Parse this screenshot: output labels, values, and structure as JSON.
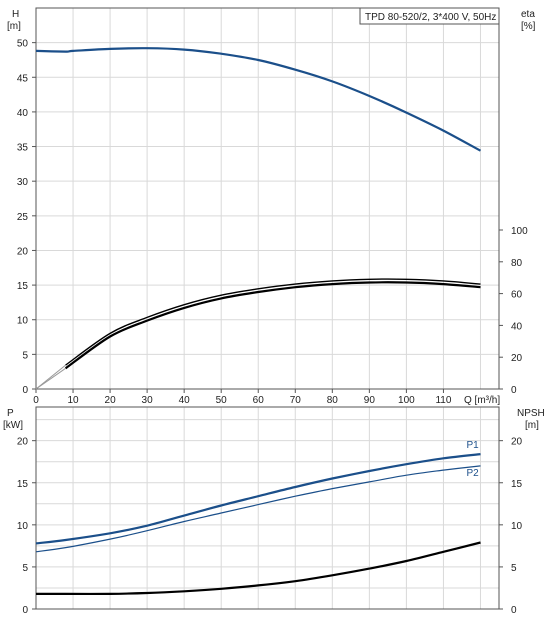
{
  "chart_data": [
    {
      "type": "line",
      "title": "TPD 80-520/2, 3*400 V, 50Hz",
      "xlabel": "Q [m³/h]",
      "x_ticks": [
        "0",
        "10",
        "20",
        "30",
        "40",
        "50",
        "60",
        "70",
        "80",
        "90",
        "100",
        "110"
      ],
      "xlim": [
        0,
        125
      ],
      "grid": true,
      "left_axis": {
        "label_line1": "H",
        "label_line2": "[m]",
        "ticks": [
          "0",
          "5",
          "10",
          "15",
          "20",
          "25",
          "30",
          "35",
          "40",
          "45",
          "50"
        ],
        "ylim": [
          0,
          55
        ]
      },
      "right_axis": {
        "label_line1": "eta",
        "label_line2": "[%]",
        "ticks": [
          "0",
          "20",
          "40",
          "60",
          "80",
          "100"
        ],
        "ylim": [
          0,
          100
        ]
      },
      "series": [
        {
          "color": "#1b4f8a",
          "axis": "left",
          "x": [
            0,
            8,
            10,
            20,
            30,
            40,
            50,
            60,
            70,
            80,
            90,
            100,
            110,
            120
          ],
          "y": [
            48.8,
            48.7,
            48.8,
            49.1,
            49.2,
            49.0,
            48.4,
            47.5,
            46.1,
            44.4,
            42.3,
            39.9,
            37.3,
            34.4
          ]
        },
        {
          "color": "#000000",
          "axis": "right",
          "x": [
            8,
            20,
            30,
            40,
            50,
            60,
            70,
            80,
            90,
            100,
            110,
            120
          ],
          "y": [
            13,
            33,
            43,
            51,
            57,
            61,
            64,
            66,
            67,
            67,
            66,
            64
          ]
        },
        {
          "color": "#000000",
          "axis": "right",
          "x": [
            8,
            20,
            30,
            40,
            50,
            60,
            70,
            80,
            90,
            100,
            110,
            120
          ],
          "y": [
            15,
            35,
            45,
            53,
            59,
            63,
            66,
            68,
            69,
            69,
            68,
            66
          ]
        }
      ]
    },
    {
      "type": "line",
      "xlim": [
        0,
        125
      ],
      "grid": true,
      "left_axis": {
        "label_line1": "P",
        "label_line2": "[kW]",
        "ticks": [
          "0",
          "5",
          "10",
          "15",
          "20"
        ],
        "ylim": [
          0,
          24
        ]
      },
      "right_axis": {
        "label_line1": "NPSH",
        "label_line2": "[m]",
        "ticks": [
          "0",
          "5",
          "10",
          "15",
          "20"
        ],
        "ylim": [
          0,
          24
        ]
      },
      "series": [
        {
          "name": "P1",
          "color": "#1b4f8a",
          "axis": "left",
          "x": [
            0,
            8,
            20,
            30,
            40,
            50,
            60,
            70,
            80,
            90,
            100,
            110,
            120
          ],
          "y": [
            7.8,
            8.2,
            9.0,
            9.9,
            11.1,
            12.3,
            13.4,
            14.5,
            15.5,
            16.4,
            17.2,
            17.9,
            18.4
          ]
        },
        {
          "name": "P2",
          "color": "#1b4f8a",
          "axis": "left",
          "x": [
            0,
            8,
            20,
            30,
            40,
            50,
            60,
            70,
            80,
            90,
            100,
            110,
            120
          ],
          "y": [
            6.8,
            7.3,
            8.3,
            9.3,
            10.4,
            11.4,
            12.4,
            13.4,
            14.3,
            15.1,
            15.9,
            16.5,
            17.0
          ]
        },
        {
          "color": "#000000",
          "axis": "right",
          "x": [
            0,
            8,
            20,
            30,
            40,
            50,
            60,
            70,
            80,
            90,
            100,
            110,
            120
          ],
          "y": [
            1.8,
            1.8,
            1.8,
            1.9,
            2.1,
            2.4,
            2.8,
            3.3,
            4.0,
            4.8,
            5.7,
            6.8,
            7.9
          ]
        }
      ]
    }
  ]
}
